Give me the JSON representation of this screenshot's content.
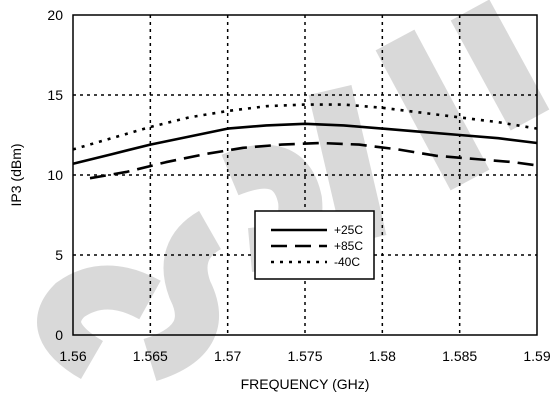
{
  "chart_data": {
    "type": "line",
    "title": "",
    "xlabel": "FREQUENCY (GHz)",
    "ylabel": "IP3 (dBm)",
    "xlim": [
      1.56,
      1.59
    ],
    "ylim": [
      0,
      20
    ],
    "x_ticks": [
      1.56,
      1.565,
      1.57,
      1.575,
      1.58,
      1.585,
      1.59
    ],
    "y_ticks": [
      0,
      5,
      10,
      15,
      20
    ],
    "x_tick_labels": [
      "1.56",
      "1.565",
      "1.57",
      "1.575",
      "1.58",
      "1.585",
      "1.59"
    ],
    "y_tick_labels": [
      "0",
      "5",
      "10",
      "15",
      "20"
    ],
    "grid": true,
    "legend_position": "center-right",
    "series": [
      {
        "name": "+25C",
        "style": "solid",
        "x": [
          1.56,
          1.5625,
          1.565,
          1.5675,
          1.57,
          1.5725,
          1.575,
          1.5775,
          1.58,
          1.5825,
          1.585,
          1.5875,
          1.59
        ],
        "y": [
          10.7,
          11.3,
          11.9,
          12.4,
          12.9,
          13.1,
          13.2,
          13.1,
          12.9,
          12.7,
          12.5,
          12.3,
          12.0
        ]
      },
      {
        "name": "+85C",
        "style": "dashed",
        "x": [
          1.5611,
          1.5635,
          1.566,
          1.5685,
          1.571,
          1.5735,
          1.576,
          1.5785,
          1.581,
          1.5835,
          1.586,
          1.5885,
          1.59
        ],
        "y": [
          9.8,
          10.2,
          10.8,
          11.3,
          11.7,
          11.9,
          12.0,
          11.9,
          11.6,
          11.2,
          11.0,
          10.8,
          10.6
        ]
      },
      {
        "name": "-40C",
        "style": "dotted",
        "x": [
          1.56,
          1.5625,
          1.565,
          1.5675,
          1.57,
          1.5725,
          1.575,
          1.5775,
          1.58,
          1.5825,
          1.585,
          1.5875,
          1.59
        ],
        "y": [
          11.6,
          12.3,
          13.0,
          13.6,
          14.0,
          14.3,
          14.4,
          14.4,
          14.2,
          13.9,
          13.6,
          13.3,
          12.9
        ]
      }
    ]
  },
  "watermark": {
    "text": "OBSOLETE",
    "color": "#cfcfcf"
  }
}
